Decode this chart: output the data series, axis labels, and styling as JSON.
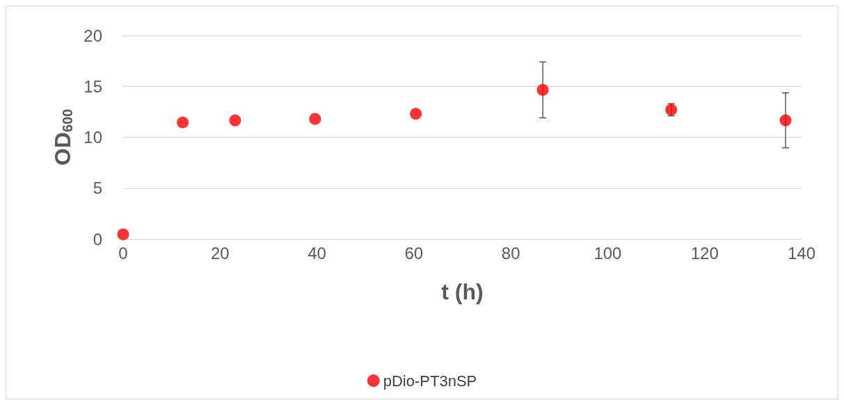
{
  "chart_data": {
    "type": "scatter",
    "xlabel": "t (h)",
    "ylabel": "OD$_{600}$",
    "x": [
      0,
      12.3,
      23.1,
      39.6,
      60.4,
      86.6,
      113.1,
      136.7
    ],
    "series": [
      {
        "name": "pDio-PT3nSP",
        "color": "#ff0000",
        "values": [
          0.45,
          11.45,
          11.65,
          11.8,
          12.3,
          14.65,
          12.7,
          11.65
        ],
        "errors": [
          null,
          null,
          null,
          null,
          null,
          2.75,
          0.6,
          2.7
        ]
      }
    ],
    "xlim": [
      0,
      140
    ],
    "xticks": [
      0,
      20,
      40,
      60,
      80,
      100,
      120,
      140
    ],
    "ylim": [
      0,
      20
    ],
    "yticks": [
      0,
      5,
      10,
      15,
      20
    ],
    "grid": "y",
    "legend": "bottom",
    "marker": "circle"
  }
}
